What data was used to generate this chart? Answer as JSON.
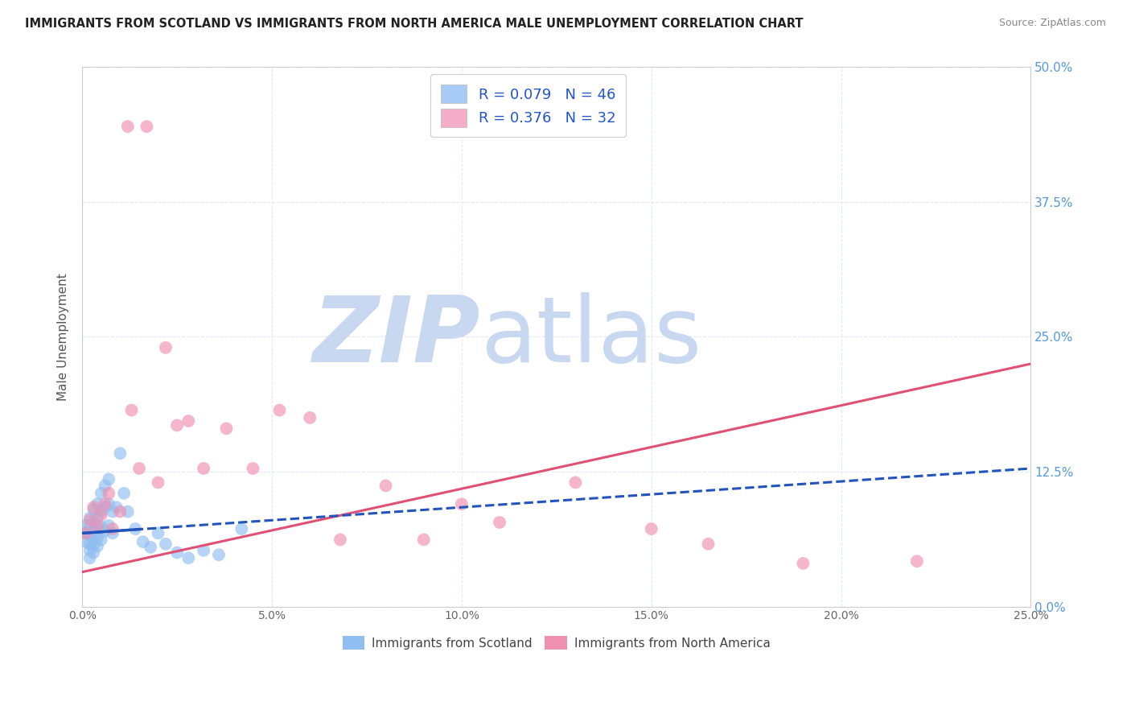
{
  "title": "IMMIGRANTS FROM SCOTLAND VS IMMIGRANTS FROM NORTH AMERICA MALE UNEMPLOYMENT CORRELATION CHART",
  "source": "Source: ZipAtlas.com",
  "ylabel": "Male Unemployment",
  "xlim": [
    0.0,
    0.25
  ],
  "ylim": [
    0.0,
    0.5
  ],
  "x_tick_vals": [
    0.0,
    0.05,
    0.1,
    0.15,
    0.2,
    0.25
  ],
  "x_tick_labels": [
    "0.0%",
    "5.0%",
    "10.0%",
    "15.0%",
    "20.0%",
    "25.0%"
  ],
  "y_tick_vals": [
    0.0,
    0.125,
    0.25,
    0.375,
    0.5
  ],
  "y_tick_labels_right": [
    "0.0%",
    "12.5%",
    "25.0%",
    "37.5%",
    "50.0%"
  ],
  "legend_labels_bottom": [
    "Immigrants from Scotland",
    "Immigrants from North America"
  ],
  "scotland_color": "#90bef0",
  "na_color": "#f090b0",
  "scotland_line_color": "#2255bb",
  "na_line_color": "#e05075",
  "watermark_zip": "ZIP",
  "watermark_atlas": "atlas",
  "watermark_color_zip": "#c8d8f0",
  "watermark_color_atlas": "#c8d8f0",
  "legend_patch_scotland": "#a8ccf5",
  "legend_patch_na": "#f5aec8",
  "background_color": "#ffffff",
  "grid_color": "#ddeaf8",
  "right_axis_color": "#5599dd",
  "scotland_x": [
    0.001,
    0.001,
    0.001,
    0.002,
    0.002,
    0.002,
    0.002,
    0.002,
    0.002,
    0.003,
    0.003,
    0.003,
    0.003,
    0.003,
    0.003,
    0.004,
    0.004,
    0.004,
    0.004,
    0.004,
    0.005,
    0.005,
    0.005,
    0.005,
    0.006,
    0.006,
    0.006,
    0.007,
    0.007,
    0.007,
    0.008,
    0.008,
    0.009,
    0.01,
    0.011,
    0.012,
    0.014,
    0.016,
    0.018,
    0.02,
    0.022,
    0.025,
    0.028,
    0.032,
    0.036,
    0.042
  ],
  "scotland_y": [
    0.075,
    0.068,
    0.06,
    0.082,
    0.074,
    0.066,
    0.058,
    0.052,
    0.045,
    0.09,
    0.078,
    0.07,
    0.064,
    0.057,
    0.05,
    0.095,
    0.083,
    0.072,
    0.064,
    0.056,
    0.105,
    0.088,
    0.074,
    0.062,
    0.112,
    0.092,
    0.07,
    0.118,
    0.095,
    0.075,
    0.088,
    0.068,
    0.092,
    0.142,
    0.105,
    0.088,
    0.072,
    0.06,
    0.055,
    0.068,
    0.058,
    0.05,
    0.045,
    0.052,
    0.048,
    0.072
  ],
  "na_x": [
    0.001,
    0.002,
    0.003,
    0.004,
    0.005,
    0.006,
    0.007,
    0.008,
    0.01,
    0.012,
    0.013,
    0.015,
    0.017,
    0.02,
    0.022,
    0.025,
    0.028,
    0.032,
    0.038,
    0.045,
    0.052,
    0.06,
    0.068,
    0.08,
    0.09,
    0.1,
    0.11,
    0.13,
    0.15,
    0.165,
    0.19,
    0.22
  ],
  "na_y": [
    0.068,
    0.08,
    0.092,
    0.075,
    0.085,
    0.095,
    0.105,
    0.072,
    0.088,
    0.445,
    0.182,
    0.128,
    0.445,
    0.115,
    0.24,
    0.168,
    0.172,
    0.128,
    0.165,
    0.128,
    0.182,
    0.175,
    0.062,
    0.112,
    0.062,
    0.095,
    0.078,
    0.115,
    0.072,
    0.058,
    0.04,
    0.042
  ],
  "na_line_x0": 0.0,
  "na_line_y0": 0.032,
  "na_line_x1": 0.25,
  "na_line_y1": 0.225,
  "scot_line_x0": 0.0,
  "scot_line_y0": 0.068,
  "scot_line_x1": 0.25,
  "scot_line_y1": 0.128
}
